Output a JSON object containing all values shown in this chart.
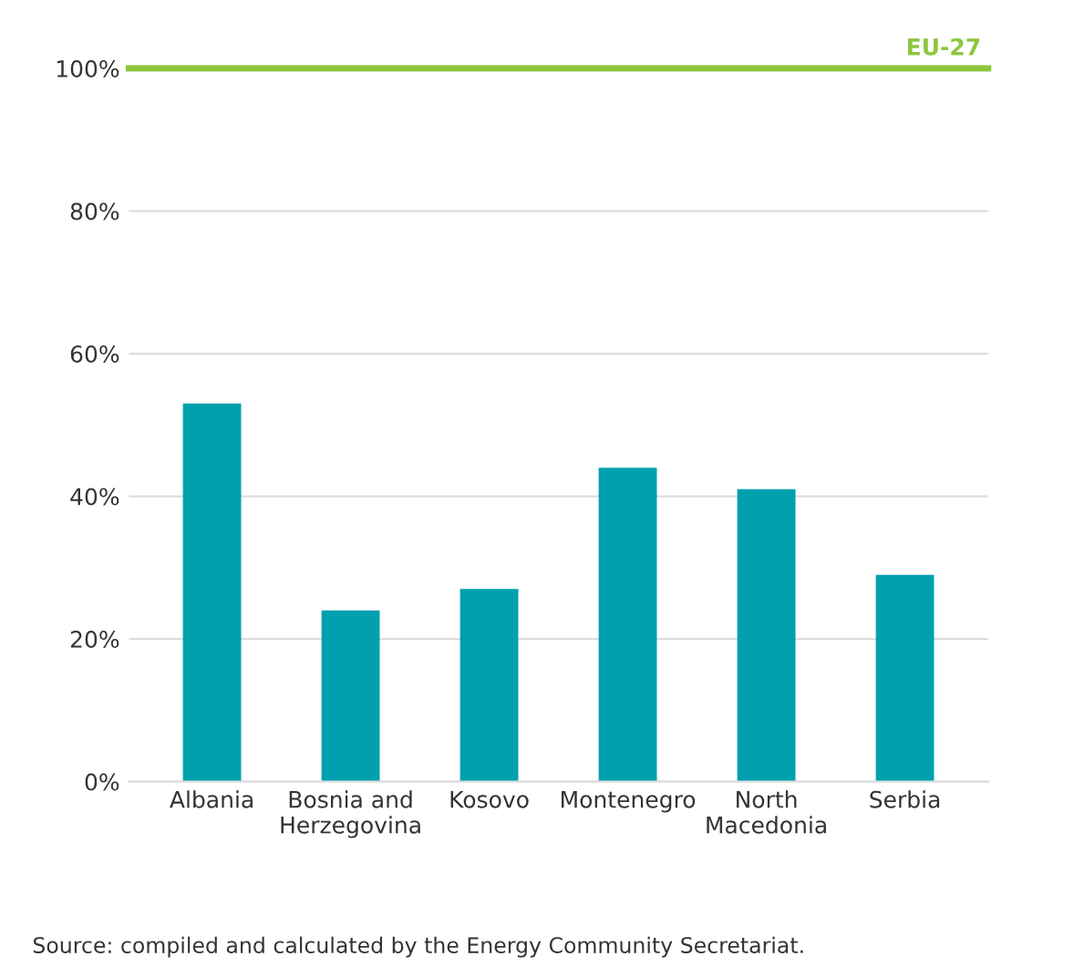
{
  "chart_data": {
    "type": "bar",
    "categories": [
      "Albania",
      "Bosnia and\nHerzegovina",
      "Kosovo",
      "Montenegro",
      "North\nMacedonia",
      "Serbia"
    ],
    "values": [
      53,
      24,
      27,
      44,
      41,
      29
    ],
    "color": "#00a0ae",
    "ylim": [
      0,
      100
    ],
    "yticks": [
      {
        "value": 0,
        "label": "0%"
      },
      {
        "value": 20,
        "label": "20%"
      },
      {
        "value": 40,
        "label": "40%"
      },
      {
        "value": 60,
        "label": "60%"
      },
      {
        "value": 80,
        "label": "80%"
      },
      {
        "value": 100,
        "label": "100%"
      }
    ],
    "grid": "y",
    "ref_lines": [
      {
        "axis": "y",
        "value": 100,
        "label": "EU-27",
        "color": "#8dc63f"
      }
    ],
    "annotations": [
      "Source: compiled and calculated by the Energy Community Secretariat."
    ]
  }
}
